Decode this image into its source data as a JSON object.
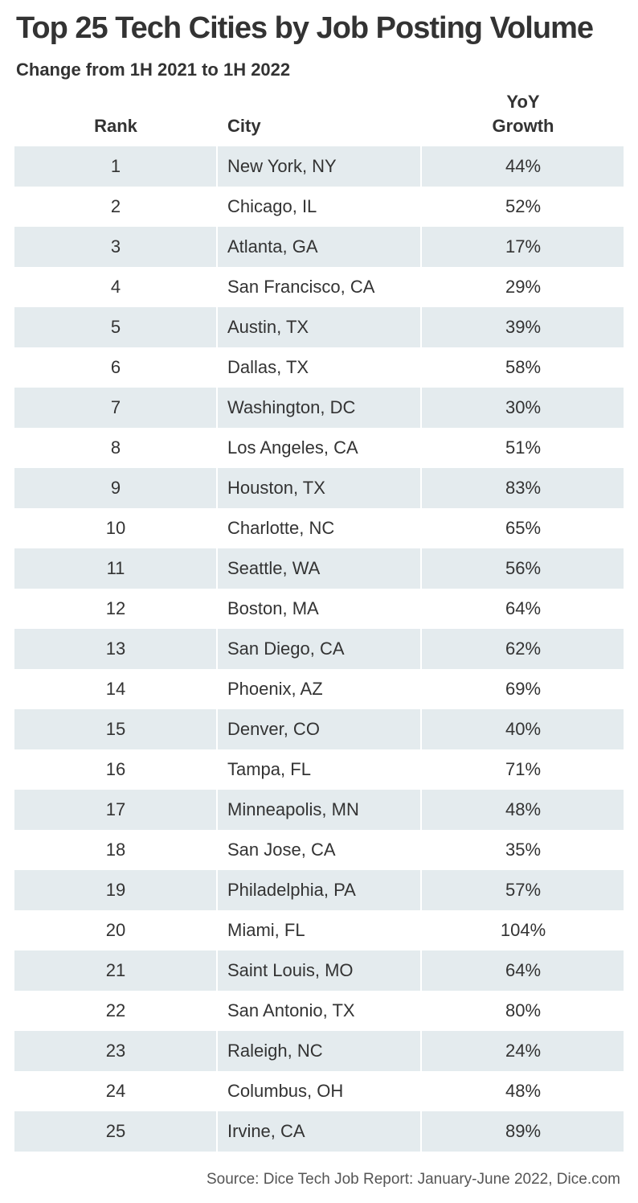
{
  "title": "Top 25 Tech Cities by Job Posting Volume",
  "subtitle": "Change from 1H 2021 to 1H 2022",
  "source": "Source: Dice Tech Job Report: January-June 2022, Dice.com",
  "colors": {
    "shaded_row": "#e4ebee",
    "text": "#333333"
  },
  "chart_data": {
    "type": "table",
    "columns": [
      "Rank",
      "City",
      "YoY Growth"
    ],
    "rows": [
      {
        "rank": "1",
        "city": "New York, NY",
        "growth": "44%"
      },
      {
        "rank": "2",
        "city": "Chicago, IL",
        "growth": "52%"
      },
      {
        "rank": "3",
        "city": "Atlanta, GA",
        "growth": "17%"
      },
      {
        "rank": "4",
        "city": "San Francisco, CA",
        "growth": "29%"
      },
      {
        "rank": "5",
        "city": "Austin, TX",
        "growth": "39%"
      },
      {
        "rank": "6",
        "city": "Dallas, TX",
        "growth": "58%"
      },
      {
        "rank": "7",
        "city": "Washington, DC",
        "growth": "30%"
      },
      {
        "rank": "8",
        "city": "Los Angeles, CA",
        "growth": "51%"
      },
      {
        "rank": "9",
        "city": "Houston, TX",
        "growth": "83%"
      },
      {
        "rank": "10",
        "city": "Charlotte, NC",
        "growth": "65%"
      },
      {
        "rank": "11",
        "city": "Seattle, WA",
        "growth": "56%"
      },
      {
        "rank": "12",
        "city": "Boston, MA",
        "growth": "64%"
      },
      {
        "rank": "13",
        "city": "San Diego, CA",
        "growth": "62%"
      },
      {
        "rank": "14",
        "city": "Phoenix, AZ",
        "growth": "69%"
      },
      {
        "rank": "15",
        "city": "Denver, CO",
        "growth": "40%"
      },
      {
        "rank": "16",
        "city": "Tampa, FL",
        "growth": "71%"
      },
      {
        "rank": "17",
        "city": "Minneapolis, MN",
        "growth": "48%"
      },
      {
        "rank": "18",
        "city": "San Jose, CA",
        "growth": "35%"
      },
      {
        "rank": "19",
        "city": "Philadelphia, PA",
        "growth": "57%"
      },
      {
        "rank": "20",
        "city": "Miami, FL",
        "growth": "104%"
      },
      {
        "rank": "21",
        "city": "Saint Louis, MO",
        "growth": "64%"
      },
      {
        "rank": "22",
        "city": "San Antonio, TX",
        "growth": "80%"
      },
      {
        "rank": "23",
        "city": "Raleigh, NC",
        "growth": "24%"
      },
      {
        "rank": "24",
        "city": "Columbus, OH",
        "growth": "48%"
      },
      {
        "rank": "25",
        "city": "Irvine, CA",
        "growth": "89%"
      }
    ]
  }
}
